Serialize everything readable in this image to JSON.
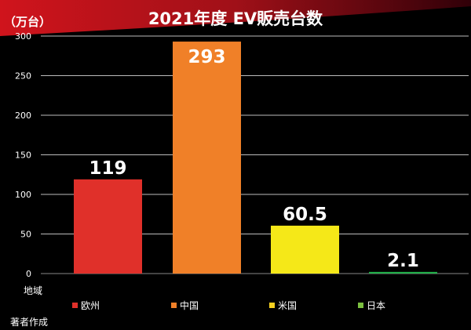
{
  "chart_data": {
    "type": "bar",
    "title": "2021年度 EV販売台数",
    "ylabel": "（万台）",
    "xlabel": "地域",
    "categories": [
      "欧州",
      "中国",
      "米国",
      "日本"
    ],
    "values": [
      119,
      293,
      60.5,
      2.1
    ],
    "data_labels": [
      "119",
      "293",
      "60.5",
      "2.1"
    ],
    "colors": [
      "#e0302a",
      "#f08028",
      "#f5e818",
      "#22b04a"
    ],
    "legend_colors": [
      "#e0302a",
      "#f08028",
      "#f5d020",
      "#7cc040"
    ],
    "ylim": [
      0,
      300
    ],
    "yticks": [
      "0",
      "50",
      "100",
      "150",
      "200",
      "250",
      "300"
    ],
    "grid": true,
    "legend_position": "bottom"
  },
  "source": "著者作成"
}
